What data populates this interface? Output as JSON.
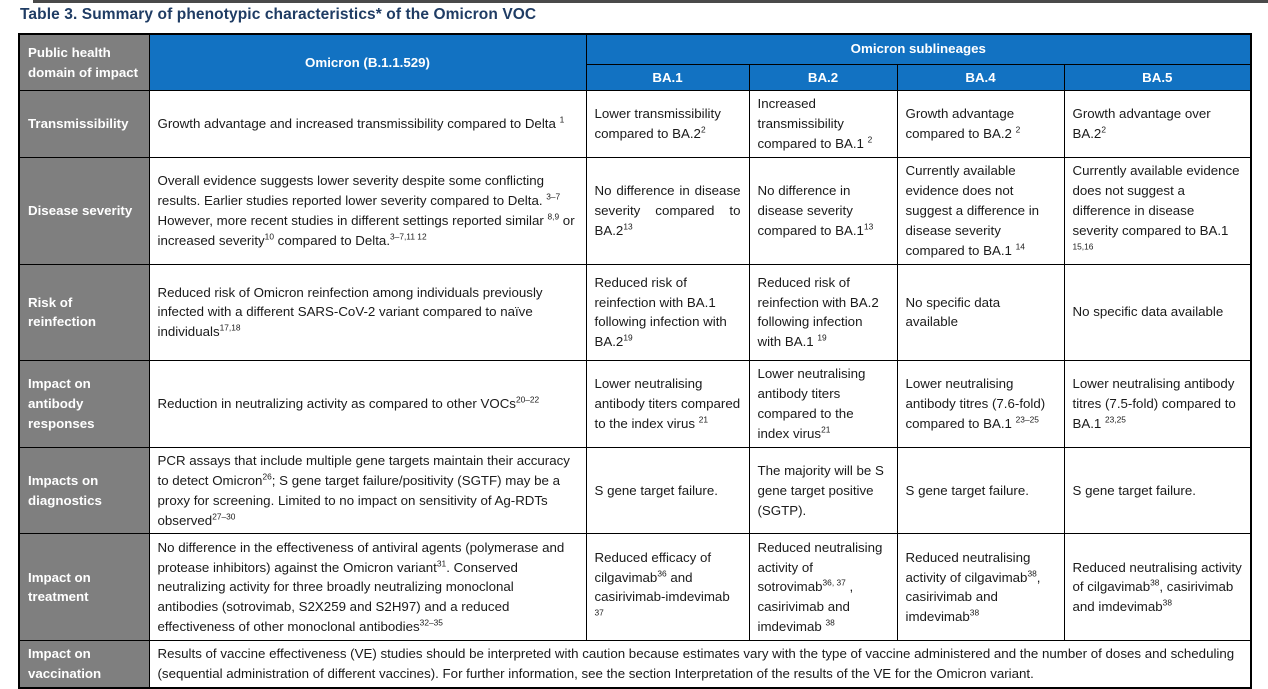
{
  "title": "Table 3. Summary of phenotypic characteristics* of the Omicron VOC",
  "colors": {
    "header_blue": "#1272C2",
    "label_gray": "#7F7F7F",
    "title_navy": "#1F3C64",
    "border": "#000000",
    "body_text": "#1A1A1A"
  },
  "table": {
    "corner_header": "Public health domain of impact",
    "omicron_header": "Omicron (B.1.1.529)",
    "sublineages_header": "Omicron sublineages",
    "sublineage_columns": [
      "BA.1",
      "BA.2",
      "BA.4",
      "BA.5"
    ],
    "rows": [
      {
        "label": "Transmissibility",
        "cells": [
          "Growth advantage and increased transmissibility compared to Delta ^{1}",
          "Lower transmissibility compared to BA.2^{2}",
          "Increased transmissibility compared to BA.1 ^{2}",
          "Growth advantage compared to BA.2 ^{2}",
          "Growth advantage over BA.2^{2}"
        ]
      },
      {
        "label": "Disease severity",
        "cells": [
          "Overall evidence suggests lower severity despite some conflicting results. Earlier studies reported lower severity compared to Delta. ^{3–7} However, more recent studies in different settings reported similar ^{8,9} or increased severity^{10} compared to Delta.^{3–7,11 12}",
          "No difference in disease severity compared to BA.2^{13}",
          "No difference in disease severity compared to BA.1^{13}",
          "Currently available evidence does not suggest a difference in disease severity compared to BA.1 ^{14}",
          "Currently available evidence does not suggest a difference in disease severity compared to BA.1 ^{15,16}"
        ]
      },
      {
        "label": "Risk of reinfection",
        "cells": [
          "Reduced risk of Omicron reinfection among individuals previously infected with a different SARS-CoV-2 variant compared to naïve individuals^{17,18}",
          "Reduced risk of reinfection with BA.1 following infection with BA.2^{19}",
          "Reduced risk of reinfection with BA.2 following infection with BA.1 ^{19}",
          "No specific data available",
          "No specific data available"
        ]
      },
      {
        "label": "Impact on antibody responses",
        "cells": [
          "Reduction in neutralizing activity as compared to other VOCs^{20–22}",
          "Lower neutralising antibody titers compared to the index virus ^{21}",
          "Lower neutralising antibody titers compared to the index virus^{21}",
          "Lower neutralising antibody titres (7.6-fold) compared to BA.1 ^{23–25}",
          "Lower neutralising antibody titres (7.5-fold) compared to BA.1 ^{23,25}"
        ]
      },
      {
        "label": "Impacts on diagnostics",
        "cells": [
          "PCR assays that include multiple gene targets maintain their accuracy to detect Omicron^{26}; S gene target failure/positivity (SGTF) may be a proxy for screening. Limited to no impact on sensitivity of Ag-RDTs observed^{27–30}",
          "S gene target failure.",
          "The majority will be S gene target positive (SGTP).",
          "S gene target failure.",
          "S gene target failure."
        ]
      },
      {
        "label": "Impact on treatment",
        "cells": [
          "No difference in the effectiveness of antiviral agents (polymerase and protease inhibitors) against the Omicron variant^{31}. Conserved neutralizing activity for three broadly neutralizing monoclonal antibodies (sotrovimab, S2X259 and S2H97) and a reduced effectiveness of other monoclonal antibodies^{32–35}",
          "Reduced efficacy of cilgavimab^{36} and casirivimab-imdevimab ^{37}",
          "Reduced neutralising activity of sotrovimab^{36, 37} , casirivimab and imdevimab ^{38}",
          "Reduced neutralising activity of cilgavimab^{38}, casirivimab and imdevimab^{38}",
          "Reduced neutralising activity of cilgavimab^{38}, casirivimab and imdevimab^{38}"
        ]
      }
    ],
    "vaccination": {
      "label": "Impact on vaccination",
      "text": "Results of vaccine effectiveness (VE) studies should be interpreted with caution because estimates vary with the type of vaccine administered and the number of doses and scheduling (sequential administration of different vaccines). For further information, see the section Interpretation of the results of the VE for the Omicron variant."
    }
  }
}
